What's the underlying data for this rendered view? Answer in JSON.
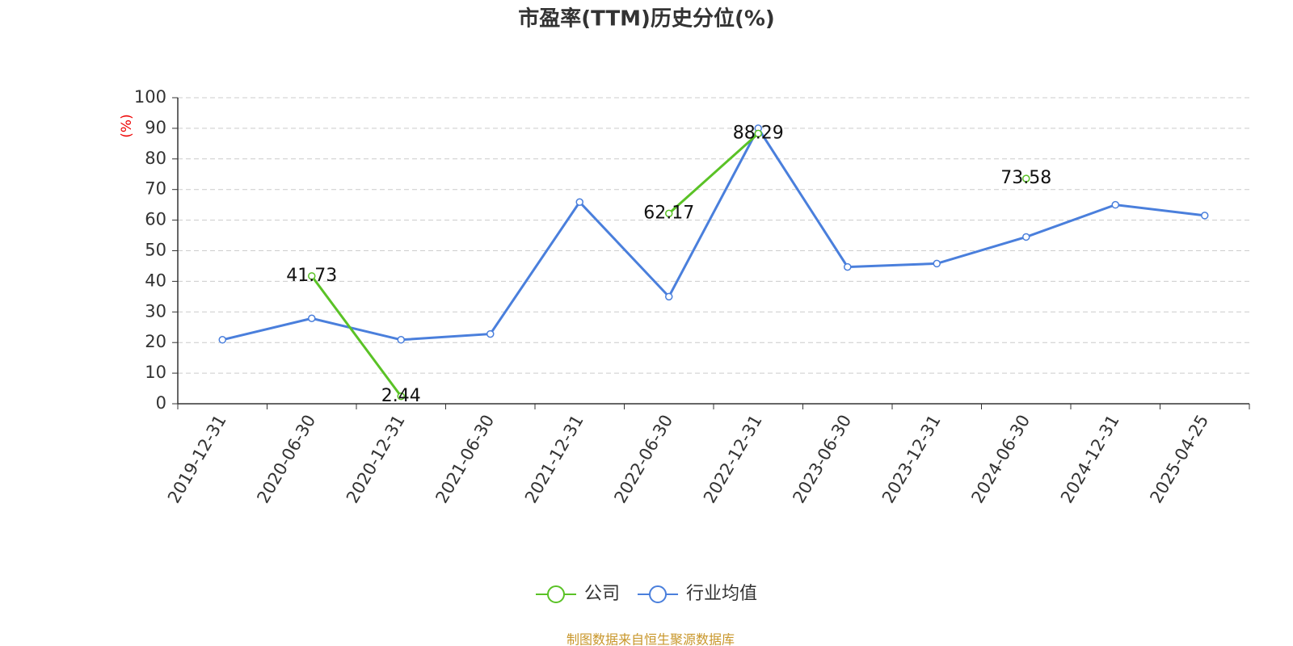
{
  "chart_data": {
    "type": "line",
    "title": "市盈率(TTM)历史分位(%)",
    "y_label": "(%)",
    "source": "制图数据来自恒生聚源数据库",
    "categories": [
      "2019-12-31",
      "2020-06-30",
      "2020-12-31",
      "2021-06-30",
      "2021-12-31",
      "2022-06-30",
      "2022-12-31",
      "2023-06-30",
      "2023-12-31",
      "2024-06-30",
      "2024-12-31",
      "2025-04-25"
    ],
    "series": [
      {
        "name": "公司",
        "color": "#5ac226",
        "show_labels": true,
        "values": [
          null,
          41.73,
          2.44,
          null,
          null,
          62.17,
          88.29,
          null,
          null,
          73.58,
          null,
          null
        ]
      },
      {
        "name": "行业均值",
        "color": "#4a7fdc",
        "show_labels": false,
        "values": [
          20.9,
          27.9,
          20.9,
          22.8,
          65.9,
          35.0,
          90.0,
          44.7,
          45.8,
          54.5,
          65.0,
          61.5
        ]
      }
    ],
    "ylim": [
      0,
      100
    ],
    "yticks": [
      0,
      10,
      20,
      30,
      40,
      50,
      60,
      70,
      80,
      90,
      100
    ],
    "grid": true,
    "legend": "bottom"
  }
}
